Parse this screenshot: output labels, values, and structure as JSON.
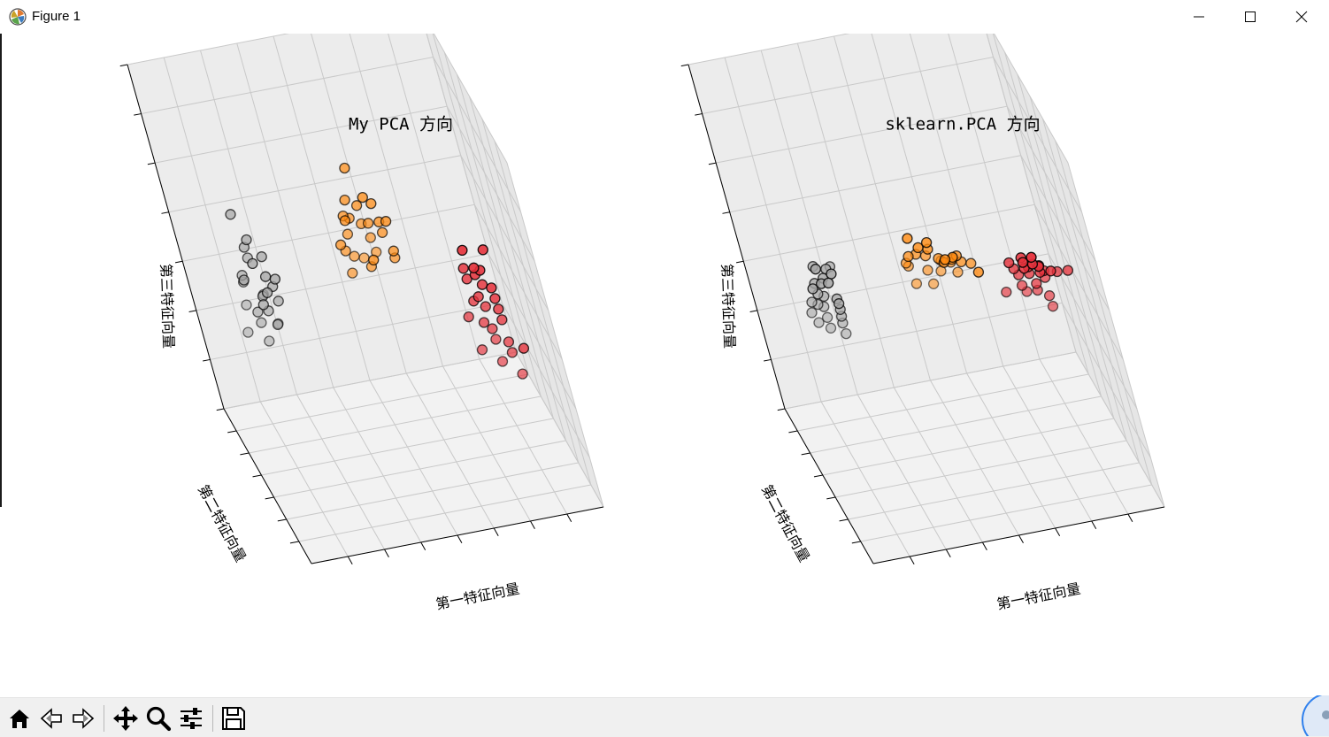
{
  "window": {
    "title": "Figure 1",
    "app_icon": "matplotlib-icon",
    "controls": [
      "minimize-icon",
      "maximize-icon",
      "close-icon"
    ]
  },
  "toolbar": {
    "buttons": [
      {
        "name": "home-button",
        "icon": "home-icon"
      },
      {
        "name": "back-button",
        "icon": "back-arrow-icon"
      },
      {
        "name": "forward-button",
        "icon": "forward-arrow-icon"
      },
      {
        "name": "pan-button",
        "icon": "move-icon"
      },
      {
        "name": "zoom-button",
        "icon": "magnifier-icon"
      },
      {
        "name": "configure-subplots-button",
        "icon": "sliders-icon"
      },
      {
        "name": "save-button",
        "icon": "floppy-disk-icon"
      }
    ]
  },
  "colors": {
    "cluster_0": "#a5a5a5",
    "cluster_1": "#ff8b12",
    "cluster_2": "#e5303a",
    "marker_edge": "#000000",
    "pane": "#f2f2f2",
    "grid": "#c9c9c9"
  },
  "chart_data": [
    {
      "type": "scatter3d",
      "title": "My PCA 方向",
      "xlabel": "第一特征向量",
      "ylabel": "第二特征向量",
      "zlabel": "第三特征向量",
      "tick_labels": "hidden",
      "series": [
        {
          "name": "cluster_0",
          "color": "#a5a5a5",
          "points": [
            [
              -2.9,
              0.3,
              0.7
            ],
            [
              -2.8,
              -0.1,
              0.4
            ],
            [
              -2.7,
              0.2,
              0.5
            ],
            [
              -2.7,
              0.6,
              0.3
            ],
            [
              -3.0,
              0.4,
              0.1
            ],
            [
              -2.5,
              0.1,
              0.2
            ],
            [
              -2.9,
              0.8,
              0.0
            ],
            [
              -2.8,
              1.2,
              -0.2
            ],
            [
              -2.6,
              0.5,
              -0.1
            ],
            [
              -2.4,
              0.3,
              0.3
            ],
            [
              -2.7,
              1.0,
              -0.4
            ],
            [
              -2.5,
              0.7,
              -0.3
            ],
            [
              -2.3,
              0.4,
              0.0
            ],
            [
              -2.8,
              1.5,
              -0.5
            ],
            [
              -2.6,
              1.3,
              -0.6
            ],
            [
              -2.2,
              0.6,
              -0.2
            ],
            [
              -2.6,
              0.9,
              0.1
            ],
            [
              -2.4,
              1.1,
              -0.3
            ],
            [
              -2.9,
              1.7,
              -0.8
            ],
            [
              -2.3,
              0.9,
              -0.5
            ],
            [
              -2.5,
              1.4,
              -0.8
            ],
            [
              -2.2,
              1.2,
              -0.6
            ],
            [
              -2.7,
              0.3,
              -0.1
            ],
            [
              -2.6,
              0.0,
              0.1
            ],
            [
              -2.3,
              0.0,
              0.2
            ]
          ]
        },
        {
          "name": "cluster_1",
          "color": "#ff8b12",
          "points": [
            [
              0.4,
              0.3,
              0.9
            ],
            [
              0.6,
              0.1,
              0.7
            ],
            [
              0.2,
              0.4,
              0.6
            ],
            [
              0.8,
              0.2,
              0.6
            ],
            [
              0.5,
              0.5,
              0.5
            ],
            [
              0.1,
              0.6,
              0.4
            ],
            [
              0.9,
              0.3,
              0.4
            ],
            [
              0.3,
              0.8,
              0.3
            ],
            [
              0.7,
              0.6,
              0.3
            ],
            [
              0.0,
              0.2,
              0.5
            ],
            [
              1.0,
              0.0,
              0.5
            ],
            [
              0.4,
              0.0,
              0.2
            ],
            [
              0.6,
              0.9,
              0.2
            ],
            [
              -0.2,
              0.5,
              0.2
            ],
            [
              1.1,
              0.4,
              0.1
            ],
            [
              0.2,
              1.0,
              0.1
            ],
            [
              0.8,
              1.1,
              0.0
            ],
            [
              0.5,
              0.7,
              -0.1
            ],
            [
              0.0,
              0.9,
              0.0
            ],
            [
              1.2,
              0.8,
              -0.1
            ],
            [
              0.3,
              1.3,
              -0.2
            ],
            [
              0.9,
              1.3,
              -0.2
            ],
            [
              0.6,
              1.5,
              -0.3
            ],
            [
              0.1,
              1.2,
              -0.3
            ],
            [
              1.0,
              0.6,
              0.2
            ]
          ]
        },
        {
          "name": "cluster_2",
          "color": "#e5303a",
          "points": [
            [
              2.6,
              -1.2,
              0.4
            ],
            [
              2.8,
              -1.0,
              0.3
            ],
            [
              2.7,
              -0.8,
              0.2
            ],
            [
              3.0,
              -0.9,
              0.1
            ],
            [
              2.5,
              -0.6,
              0.2
            ],
            [
              2.9,
              -0.5,
              0.0
            ],
            [
              3.1,
              -0.6,
              -0.1
            ],
            [
              2.6,
              -0.3,
              0.0
            ],
            [
              2.8,
              -0.2,
              -0.2
            ],
            [
              3.2,
              -0.3,
              -0.3
            ],
            [
              2.7,
              0.0,
              -0.3
            ],
            [
              3.0,
              0.1,
              -0.4
            ],
            [
              3.3,
              0.0,
              -0.5
            ],
            [
              2.9,
              0.3,
              -0.6
            ],
            [
              3.1,
              0.4,
              -0.7
            ],
            [
              2.6,
              0.5,
              -0.6
            ],
            [
              3.4,
              0.3,
              -0.8
            ],
            [
              3.2,
              0.7,
              -0.9
            ],
            [
              2.8,
              0.8,
              -1.0
            ],
            [
              3.5,
              0.6,
              -1.0
            ],
            [
              3.6,
              -0.2,
              -0.7
            ],
            [
              3.3,
              1.0,
              -1.2
            ],
            [
              2.4,
              -1.3,
              0.6
            ],
            [
              3.0,
              -1.1,
              0.5
            ],
            [
              3.7,
              0.9,
              -1.3
            ]
          ]
        }
      ]
    },
    {
      "type": "scatter3d",
      "title": "sklearn.PCA 方向",
      "xlabel": "第一特征向量",
      "ylabel": "第二特征向量",
      "zlabel": "第三特征向量",
      "tick_labels": "hidden",
      "series": [
        {
          "name": "cluster_0",
          "color": "#a5a5a5",
          "points": [
            [
              -3.0,
              -0.8,
              0.6
            ],
            [
              -2.8,
              -0.9,
              0.5
            ],
            [
              -2.9,
              -0.6,
              0.4
            ],
            [
              -2.6,
              -0.7,
              0.5
            ],
            [
              -3.1,
              -0.4,
              0.3
            ],
            [
              -2.7,
              -0.2,
              0.3
            ],
            [
              -2.9,
              0.0,
              0.2
            ],
            [
              -2.5,
              -0.3,
              0.1
            ],
            [
              -2.8,
              0.3,
              0.0
            ],
            [
              -2.4,
              0.1,
              0.0
            ],
            [
              -2.6,
              0.5,
              -0.1
            ],
            [
              -2.9,
              0.7,
              -0.2
            ],
            [
              -2.3,
              0.4,
              -0.2
            ],
            [
              -2.7,
              0.9,
              -0.3
            ],
            [
              -2.5,
              1.1,
              -0.4
            ],
            [
              -2.2,
              0.8,
              -0.4
            ],
            [
              -2.8,
              1.3,
              -0.5
            ],
            [
              -2.4,
              1.4,
              -0.6
            ],
            [
              -2.1,
              1.2,
              -0.6
            ],
            [
              -2.6,
              1.6,
              -0.7
            ],
            [
              -2.3,
              1.7,
              -0.8
            ],
            [
              -2.0,
              1.5,
              -0.8
            ],
            [
              -2.7,
              0.4,
              0.2
            ],
            [
              -2.2,
              0.6,
              0.1
            ],
            [
              -2.5,
              0.0,
              0.3
            ]
          ]
        },
        {
          "name": "cluster_1",
          "color": "#ff8b12",
          "points": [
            [
              0.2,
              -0.4,
              0.5
            ],
            [
              0.5,
              -0.6,
              0.4
            ],
            [
              0.0,
              -0.2,
              0.4
            ],
            [
              0.8,
              -0.3,
              0.3
            ],
            [
              0.3,
              0.0,
              0.3
            ],
            [
              -0.2,
              0.2,
              0.2
            ],
            [
              1.0,
              0.0,
              0.2
            ],
            [
              0.6,
              0.3,
              0.1
            ],
            [
              0.1,
              0.5,
              0.1
            ],
            [
              1.2,
              0.4,
              0.0
            ],
            [
              0.4,
              0.7,
              0.0
            ],
            [
              0.8,
              0.8,
              -0.1
            ],
            [
              -0.1,
              0.9,
              -0.1
            ],
            [
              1.1,
              1.0,
              -0.2
            ],
            [
              0.5,
              1.2,
              -0.3
            ],
            [
              0.9,
              1.4,
              -0.4
            ],
            [
              0.2,
              1.5,
              -0.5
            ],
            [
              1.3,
              1.3,
              -0.4
            ],
            [
              0.7,
              1.7,
              -0.6
            ],
            [
              1.5,
              0.6,
              -0.1
            ],
            [
              -0.3,
              -0.5,
              0.6
            ],
            [
              1.4,
              -0.2,
              0.1
            ],
            [
              0.0,
              1.1,
              -0.2
            ],
            [
              0.6,
              -0.1,
              0.2
            ],
            [
              1.0,
              0.5,
              0.0
            ]
          ]
        },
        {
          "name": "cluster_2",
          "color": "#e5303a",
          "points": [
            [
              2.3,
              -1.3,
              0.5
            ],
            [
              2.6,
              -1.1,
              0.4
            ],
            [
              2.4,
              -0.9,
              0.4
            ],
            [
              2.8,
              -0.9,
              0.3
            ],
            [
              2.5,
              -0.6,
              0.2
            ],
            [
              2.9,
              -0.6,
              0.2
            ],
            [
              2.2,
              -0.4,
              0.2
            ],
            [
              2.7,
              -0.3,
              0.1
            ],
            [
              3.0,
              -0.2,
              0.0
            ],
            [
              2.4,
              0.0,
              0.0
            ],
            [
              2.8,
              0.1,
              -0.1
            ],
            [
              3.2,
              0.1,
              -0.1
            ],
            [
              2.6,
              0.4,
              -0.2
            ],
            [
              3.0,
              0.4,
              -0.3
            ],
            [
              3.3,
              0.5,
              -0.3
            ],
            [
              2.7,
              0.7,
              -0.4
            ],
            [
              3.1,
              0.8,
              -0.5
            ],
            [
              3.4,
              0.9,
              -0.6
            ],
            [
              2.9,
              1.1,
              -0.6
            ],
            [
              3.6,
              0.3,
              -0.2
            ],
            [
              3.5,
              1.2,
              -0.8
            ],
            [
              2.3,
              0.9,
              -0.5
            ],
            [
              3.8,
              0.0,
              -0.1
            ],
            [
              2.5,
              -1.5,
              0.6
            ],
            [
              3.2,
              -0.5,
              0.1
            ]
          ]
        }
      ]
    }
  ]
}
